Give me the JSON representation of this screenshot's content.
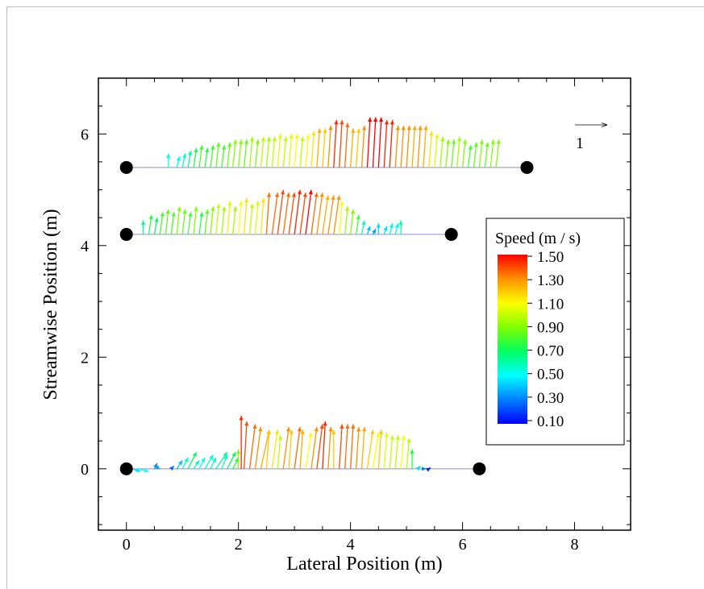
{
  "chart_data": {
    "type": "vector-field",
    "xlabel": "Lateral Position (m)",
    "ylabel": "Streamwise Position (m)",
    "xlim": [
      -0.5,
      9.0
    ],
    "ylim": [
      -1.1,
      7.0
    ],
    "xticks": [
      0,
      2,
      4,
      6,
      8
    ],
    "yticks": [
      0,
      2,
      4,
      6
    ],
    "xtick_labels": [
      "0",
      "2",
      "4",
      "6",
      "8"
    ],
    "ytick_labels": [
      "0",
      "2",
      "4",
      "6"
    ],
    "grid": false,
    "reference_vector": {
      "length": 1,
      "label": "1"
    },
    "colorbar": {
      "title": "Speed (m / s)",
      "min": 0.1,
      "max": 1.5,
      "tick_labels": [
        "1.50",
        "1.30",
        "1.10",
        "0.90",
        "0.70",
        "0.50",
        "0.30",
        "0.10"
      ]
    },
    "transects": [
      {
        "y": 0.0,
        "x_start": 0.0,
        "x_end": 6.3,
        "vectors": [
          {
            "x": 0.1,
            "u": 0.15,
            "v": -0.05,
            "s": 0.45
          },
          {
            "x": 0.2,
            "u": 0.2,
            "v": -0.05,
            "s": 0.5
          },
          {
            "x": 0.5,
            "u": 0.05,
            "v": 0.1,
            "s": 0.3
          },
          {
            "x": 0.6,
            "u": -0.1,
            "v": 0.05,
            "s": 0.35
          },
          {
            "x": 0.8,
            "u": 0.05,
            "v": 0.05,
            "s": 0.25
          },
          {
            "x": 0.9,
            "u": 0.1,
            "v": 0.15,
            "s": 0.4
          },
          {
            "x": 1.0,
            "u": 0.1,
            "v": 0.2,
            "s": 0.55
          },
          {
            "x": 1.1,
            "u": 0.15,
            "v": 0.3,
            "s": 0.7
          },
          {
            "x": 1.2,
            "u": 0.1,
            "v": 0.15,
            "s": 0.6
          },
          {
            "x": 1.3,
            "u": 0.1,
            "v": 0.2,
            "s": 0.5
          },
          {
            "x": 1.4,
            "u": 0.15,
            "v": 0.25,
            "s": 0.55
          },
          {
            "x": 1.5,
            "u": 0.1,
            "v": 0.2,
            "s": 0.6
          },
          {
            "x": 1.6,
            "u": 0.2,
            "v": 0.3,
            "s": 0.65
          },
          {
            "x": 1.7,
            "u": 0.1,
            "v": 0.25,
            "s": 0.55
          },
          {
            "x": 1.8,
            "u": 0.15,
            "v": 0.3,
            "s": 0.7
          },
          {
            "x": 1.9,
            "u": 0.1,
            "v": 0.2,
            "s": 0.75
          },
          {
            "x": 2.0,
            "u": 0.0,
            "v": 0.35,
            "s": 0.9
          },
          {
            "x": 2.05,
            "u": 0.0,
            "v": 0.95,
            "s": 1.45
          },
          {
            "x": 2.1,
            "u": 0.05,
            "v": 0.85,
            "s": 1.4
          },
          {
            "x": 2.2,
            "u": 0.1,
            "v": 0.8,
            "s": 1.35
          },
          {
            "x": 2.3,
            "u": 0.1,
            "v": 0.75,
            "s": 1.3
          },
          {
            "x": 2.4,
            "u": 0.15,
            "v": 0.7,
            "s": 1.25
          },
          {
            "x": 2.5,
            "u": 0.05,
            "v": 0.7,
            "s": 1.2
          },
          {
            "x": 2.6,
            "u": 0.1,
            "v": 0.7,
            "s": 1.15
          },
          {
            "x": 2.7,
            "u": 0.05,
            "v": 0.6,
            "s": 1.0
          },
          {
            "x": 2.8,
            "u": 0.1,
            "v": 0.75,
            "s": 1.3
          },
          {
            "x": 2.9,
            "u": 0.05,
            "v": 0.7,
            "s": 1.2
          },
          {
            "x": 3.0,
            "u": 0.1,
            "v": 0.75,
            "s": 1.35
          },
          {
            "x": 3.1,
            "u": 0.05,
            "v": 0.7,
            "s": 1.25
          },
          {
            "x": 3.2,
            "u": 0.1,
            "v": 0.65,
            "s": 1.1
          },
          {
            "x": 3.3,
            "u": 0.1,
            "v": 0.75,
            "s": 1.3
          },
          {
            "x": 3.4,
            "u": 0.1,
            "v": 0.8,
            "s": 1.4
          },
          {
            "x": 3.5,
            "u": 0.05,
            "v": 0.85,
            "s": 1.45
          },
          {
            "x": 3.6,
            "u": 0.05,
            "v": 0.75,
            "s": 1.3
          },
          {
            "x": 3.7,
            "u": 0.0,
            "v": 0.7,
            "s": 1.2
          },
          {
            "x": 3.8,
            "u": 0.05,
            "v": 0.8,
            "s": 1.4
          },
          {
            "x": 3.9,
            "u": 0.05,
            "v": 0.8,
            "s": 1.35
          },
          {
            "x": 4.0,
            "u": 0.05,
            "v": 0.8,
            "s": 1.35
          },
          {
            "x": 4.1,
            "u": 0.05,
            "v": 0.75,
            "s": 1.3
          },
          {
            "x": 4.2,
            "u": 0.05,
            "v": 0.75,
            "s": 1.25
          },
          {
            "x": 4.3,
            "u": 0.1,
            "v": 0.7,
            "s": 1.2
          },
          {
            "x": 4.4,
            "u": 0.1,
            "v": 0.65,
            "s": 1.1
          },
          {
            "x": 4.5,
            "u": 0.05,
            "v": 0.7,
            "s": 1.2
          },
          {
            "x": 4.6,
            "u": 0.05,
            "v": 0.65,
            "s": 1.05
          },
          {
            "x": 4.7,
            "u": 0.05,
            "v": 0.6,
            "s": 1.0
          },
          {
            "x": 4.8,
            "u": 0.05,
            "v": 0.6,
            "s": 1.0
          },
          {
            "x": 4.9,
            "u": 0.05,
            "v": 0.6,
            "s": 1.1
          },
          {
            "x": 5.0,
            "u": 0.05,
            "v": 0.55,
            "s": 1.0
          },
          {
            "x": 5.1,
            "u": 0.0,
            "v": 0.35,
            "s": 0.75
          },
          {
            "x": 5.2,
            "u": 0.05,
            "v": 0.05,
            "s": 0.45
          },
          {
            "x": 5.3,
            "u": 0.05,
            "v": 0.0,
            "s": 0.3
          },
          {
            "x": 5.4,
            "u": 0.03,
            "v": 0.02,
            "s": 0.15
          }
        ]
      },
      {
        "y": 4.2,
        "x_start": 0.0,
        "x_end": 5.8,
        "vectors": [
          {
            "x": 0.3,
            "u": 0.0,
            "v": 0.25,
            "s": 0.65
          },
          {
            "x": 0.4,
            "u": 0.05,
            "v": 0.35,
            "s": 0.75
          },
          {
            "x": 0.5,
            "u": 0.05,
            "v": 0.3,
            "s": 0.7
          },
          {
            "x": 0.6,
            "u": 0.05,
            "v": 0.4,
            "s": 0.8
          },
          {
            "x": 0.7,
            "u": 0.05,
            "v": 0.45,
            "s": 0.85
          },
          {
            "x": 0.8,
            "u": 0.05,
            "v": 0.4,
            "s": 0.8
          },
          {
            "x": 0.9,
            "u": 0.05,
            "v": 0.5,
            "s": 0.9
          },
          {
            "x": 1.0,
            "u": 0.05,
            "v": 0.45,
            "s": 0.85
          },
          {
            "x": 1.1,
            "u": 0.05,
            "v": 0.4,
            "s": 0.8
          },
          {
            "x": 1.2,
            "u": 0.05,
            "v": 0.5,
            "s": 0.9
          },
          {
            "x": 1.3,
            "u": 0.05,
            "v": 0.4,
            "s": 0.75
          },
          {
            "x": 1.4,
            "u": 0.05,
            "v": 0.45,
            "s": 0.85
          },
          {
            "x": 1.5,
            "u": 0.05,
            "v": 0.5,
            "s": 0.9
          },
          {
            "x": 1.6,
            "u": 0.05,
            "v": 0.55,
            "s": 1.0
          },
          {
            "x": 1.7,
            "u": 0.05,
            "v": 0.5,
            "s": 0.95
          },
          {
            "x": 1.8,
            "u": 0.05,
            "v": 0.6,
            "s": 1.05
          },
          {
            "x": 1.9,
            "u": 0.05,
            "v": 0.5,
            "s": 0.95
          },
          {
            "x": 2.0,
            "u": 0.05,
            "v": 0.6,
            "s": 1.1
          },
          {
            "x": 2.1,
            "u": 0.05,
            "v": 0.65,
            "s": 1.15
          },
          {
            "x": 2.2,
            "u": 0.05,
            "v": 0.55,
            "s": 1.0
          },
          {
            "x": 2.3,
            "u": 0.05,
            "v": 0.6,
            "s": 1.05
          },
          {
            "x": 2.4,
            "u": 0.05,
            "v": 0.65,
            "s": 1.15
          },
          {
            "x": 2.5,
            "u": 0.05,
            "v": 0.75,
            "s": 1.35
          },
          {
            "x": 2.6,
            "u": 0.1,
            "v": 0.75,
            "s": 1.35
          },
          {
            "x": 2.7,
            "u": 0.1,
            "v": 0.8,
            "s": 1.4
          },
          {
            "x": 2.8,
            "u": 0.1,
            "v": 0.75,
            "s": 1.35
          },
          {
            "x": 2.9,
            "u": 0.1,
            "v": 0.75,
            "s": 1.4
          },
          {
            "x": 3.0,
            "u": 0.1,
            "v": 0.8,
            "s": 1.45
          },
          {
            "x": 3.1,
            "u": 0.1,
            "v": 0.75,
            "s": 1.4
          },
          {
            "x": 3.2,
            "u": 0.1,
            "v": 0.8,
            "s": 1.5
          },
          {
            "x": 3.3,
            "u": 0.1,
            "v": 0.75,
            "s": 1.35
          },
          {
            "x": 3.4,
            "u": 0.1,
            "v": 0.75,
            "s": 1.3
          },
          {
            "x": 3.5,
            "u": 0.1,
            "v": 0.7,
            "s": 1.25
          },
          {
            "x": 3.6,
            "u": 0.1,
            "v": 0.7,
            "s": 1.3
          },
          {
            "x": 3.7,
            "u": 0.1,
            "v": 0.7,
            "s": 1.3
          },
          {
            "x": 3.8,
            "u": 0.05,
            "v": 0.6,
            "s": 1.1
          },
          {
            "x": 3.9,
            "u": 0.05,
            "v": 0.5,
            "s": 0.95
          },
          {
            "x": 4.0,
            "u": 0.05,
            "v": 0.45,
            "s": 0.9
          },
          {
            "x": 4.1,
            "u": 0.05,
            "v": 0.35,
            "s": 0.8
          },
          {
            "x": 4.2,
            "u": 0.05,
            "v": 0.25,
            "s": 0.6
          },
          {
            "x": 4.3,
            "u": 0.05,
            "v": 0.15,
            "s": 0.4
          },
          {
            "x": 4.4,
            "u": 0.05,
            "v": 0.1,
            "s": 0.35
          },
          {
            "x": 4.5,
            "u": 0.0,
            "v": 0.2,
            "s": 0.45
          },
          {
            "x": 4.6,
            "u": 0.05,
            "v": 0.15,
            "s": 0.45
          },
          {
            "x": 4.7,
            "u": 0.05,
            "v": 0.2,
            "s": 0.55
          },
          {
            "x": 4.8,
            "u": 0.05,
            "v": 0.2,
            "s": 0.55
          },
          {
            "x": 4.9,
            "u": 0.0,
            "v": 0.25,
            "s": 0.6
          }
        ]
      },
      {
        "y": 5.4,
        "x_start": 0.0,
        "x_end": 7.15,
        "vectors": [
          {
            "x": 0.75,
            "u": 0.0,
            "v": 0.25,
            "s": 0.55
          },
          {
            "x": 0.9,
            "u": 0.05,
            "v": 0.2,
            "s": 0.5
          },
          {
            "x": 1.0,
            "u": 0.05,
            "v": 0.25,
            "s": 0.6
          },
          {
            "x": 1.1,
            "u": 0.05,
            "v": 0.3,
            "s": 0.65
          },
          {
            "x": 1.2,
            "u": 0.05,
            "v": 0.35,
            "s": 0.75
          },
          {
            "x": 1.3,
            "u": 0.05,
            "v": 0.4,
            "s": 0.8
          },
          {
            "x": 1.4,
            "u": 0.05,
            "v": 0.35,
            "s": 0.75
          },
          {
            "x": 1.5,
            "u": 0.05,
            "v": 0.4,
            "s": 0.8
          },
          {
            "x": 1.6,
            "u": 0.05,
            "v": 0.45,
            "s": 0.85
          },
          {
            "x": 1.7,
            "u": 0.05,
            "v": 0.4,
            "s": 0.8
          },
          {
            "x": 1.8,
            "u": 0.05,
            "v": 0.45,
            "s": 0.85
          },
          {
            "x": 1.9,
            "u": 0.05,
            "v": 0.5,
            "s": 0.9
          },
          {
            "x": 2.0,
            "u": 0.05,
            "v": 0.5,
            "s": 0.9
          },
          {
            "x": 2.1,
            "u": 0.05,
            "v": 0.5,
            "s": 0.85
          },
          {
            "x": 2.2,
            "u": 0.05,
            "v": 0.55,
            "s": 0.95
          },
          {
            "x": 2.3,
            "u": 0.05,
            "v": 0.5,
            "s": 0.9
          },
          {
            "x": 2.4,
            "u": 0.05,
            "v": 0.55,
            "s": 1.0
          },
          {
            "x": 2.5,
            "u": 0.05,
            "v": 0.55,
            "s": 0.95
          },
          {
            "x": 2.6,
            "u": 0.05,
            "v": 0.55,
            "s": 1.0
          },
          {
            "x": 2.7,
            "u": 0.05,
            "v": 0.6,
            "s": 1.05
          },
          {
            "x": 2.8,
            "u": 0.05,
            "v": 0.55,
            "s": 1.0
          },
          {
            "x": 2.9,
            "u": 0.05,
            "v": 0.6,
            "s": 1.05
          },
          {
            "x": 3.0,
            "u": 0.05,
            "v": 0.6,
            "s": 1.1
          },
          {
            "x": 3.1,
            "u": 0.05,
            "v": 0.55,
            "s": 1.0
          },
          {
            "x": 3.2,
            "u": 0.05,
            "v": 0.6,
            "s": 1.1
          },
          {
            "x": 3.3,
            "u": 0.05,
            "v": 0.65,
            "s": 1.15
          },
          {
            "x": 3.4,
            "u": 0.05,
            "v": 0.7,
            "s": 1.25
          },
          {
            "x": 3.5,
            "u": 0.05,
            "v": 0.7,
            "s": 1.2
          },
          {
            "x": 3.6,
            "u": 0.05,
            "v": 0.75,
            "s": 1.3
          },
          {
            "x": 3.7,
            "u": 0.05,
            "v": 0.85,
            "s": 1.45
          },
          {
            "x": 3.8,
            "u": 0.05,
            "v": 0.85,
            "s": 1.4
          },
          {
            "x": 3.9,
            "u": 0.05,
            "v": 0.8,
            "s": 1.35
          },
          {
            "x": 4.0,
            "u": 0.05,
            "v": 0.7,
            "s": 1.25
          },
          {
            "x": 4.1,
            "u": 0.05,
            "v": 0.7,
            "s": 1.2
          },
          {
            "x": 4.2,
            "u": 0.05,
            "v": 0.75,
            "s": 1.3
          },
          {
            "x": 4.3,
            "u": 0.05,
            "v": 0.9,
            "s": 1.5
          },
          {
            "x": 4.4,
            "u": 0.05,
            "v": 0.9,
            "s": 1.5
          },
          {
            "x": 4.5,
            "u": 0.05,
            "v": 0.9,
            "s": 1.5
          },
          {
            "x": 4.6,
            "u": 0.05,
            "v": 0.85,
            "s": 1.45
          },
          {
            "x": 4.7,
            "u": 0.05,
            "v": 0.85,
            "s": 1.45
          },
          {
            "x": 4.8,
            "u": 0.05,
            "v": 0.75,
            "s": 1.3
          },
          {
            "x": 4.9,
            "u": 0.05,
            "v": 0.75,
            "s": 1.3
          },
          {
            "x": 5.0,
            "u": 0.05,
            "v": 0.75,
            "s": 1.3
          },
          {
            "x": 5.1,
            "u": 0.05,
            "v": 0.75,
            "s": 1.25
          },
          {
            "x": 5.2,
            "u": 0.05,
            "v": 0.75,
            "s": 1.3
          },
          {
            "x": 5.3,
            "u": 0.05,
            "v": 0.75,
            "s": 1.25
          },
          {
            "x": 5.4,
            "u": 0.05,
            "v": 0.65,
            "s": 1.15
          },
          {
            "x": 5.5,
            "u": 0.05,
            "v": 0.6,
            "s": 1.05
          },
          {
            "x": 5.6,
            "u": 0.05,
            "v": 0.55,
            "s": 0.95
          },
          {
            "x": 5.7,
            "u": 0.05,
            "v": 0.5,
            "s": 0.9
          },
          {
            "x": 5.8,
            "u": 0.05,
            "v": 0.5,
            "s": 0.85
          },
          {
            "x": 5.9,
            "u": 0.05,
            "v": 0.55,
            "s": 0.95
          },
          {
            "x": 6.0,
            "u": 0.05,
            "v": 0.5,
            "s": 0.9
          },
          {
            "x": 6.1,
            "u": 0.05,
            "v": 0.4,
            "s": 0.8
          },
          {
            "x": 6.2,
            "u": 0.05,
            "v": 0.45,
            "s": 0.85
          },
          {
            "x": 6.3,
            "u": 0.05,
            "v": 0.5,
            "s": 0.9
          },
          {
            "x": 6.4,
            "u": 0.05,
            "v": 0.45,
            "s": 0.85
          },
          {
            "x": 6.5,
            "u": 0.05,
            "v": 0.5,
            "s": 0.9
          },
          {
            "x": 6.6,
            "u": 0.05,
            "v": 0.5,
            "s": 0.9
          }
        ]
      }
    ]
  }
}
